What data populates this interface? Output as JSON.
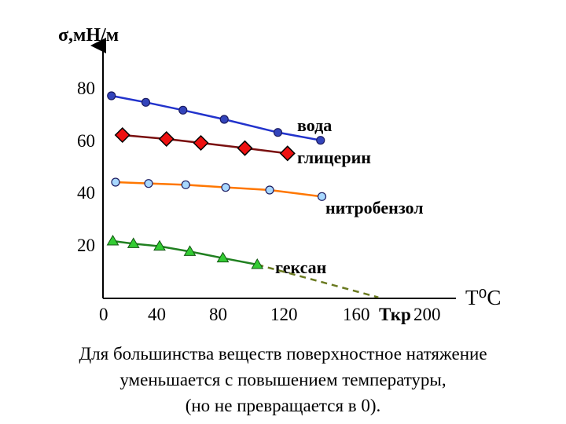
{
  "chart_data": {
    "type": "line",
    "ylabel": "σ,мН/м",
    "xlabel": "Т⁰С",
    "xlim": [
      0,
      200
    ],
    "ylim": [
      20,
      80
    ],
    "x_ticks": [
      "0",
      "40",
      "80",
      "120",
      "160",
      "200"
    ],
    "y_ticks": [
      "20",
      "40",
      "60",
      "80"
    ],
    "tkr_label": "Ткр",
    "series": [
      {
        "name": "вода",
        "color": "#2233cc",
        "marker": "circle",
        "points": [
          [
            5,
            77
          ],
          [
            30,
            74.5
          ],
          [
            57,
            71.5
          ],
          [
            87,
            68
          ],
          [
            126,
            63
          ],
          [
            157,
            60
          ]
        ]
      },
      {
        "name": "глицерин",
        "color": "#7a1010",
        "marker": "diamond",
        "points": [
          [
            13,
            62
          ],
          [
            45,
            60.5
          ],
          [
            70,
            59
          ],
          [
            102,
            57
          ],
          [
            133,
            55
          ]
        ]
      },
      {
        "name": "нитробензол",
        "color": "#ff7700",
        "marker": "circle",
        "points": [
          [
            8,
            44
          ],
          [
            32,
            43.5
          ],
          [
            59,
            43
          ],
          [
            88,
            42
          ],
          [
            120,
            41
          ],
          [
            158,
            38.5
          ]
        ]
      },
      {
        "name": "гексан",
        "color": "#208020",
        "marker": "triangle",
        "points": [
          [
            6,
            21.5
          ],
          [
            21,
            20.5
          ],
          [
            40,
            19.5
          ],
          [
            62,
            17.5
          ],
          [
            86,
            15
          ],
          [
            111,
            12.5
          ]
        ],
        "extrapolated": [
          [
            111,
            12.5
          ],
          [
            199,
            0
          ]
        ]
      }
    ]
  },
  "caption": {
    "line1": "Для большинства веществ поверхностное натяжение",
    "line2": "уменьшается с повышением температуры,",
    "line3": "(но не превращается в 0)."
  }
}
